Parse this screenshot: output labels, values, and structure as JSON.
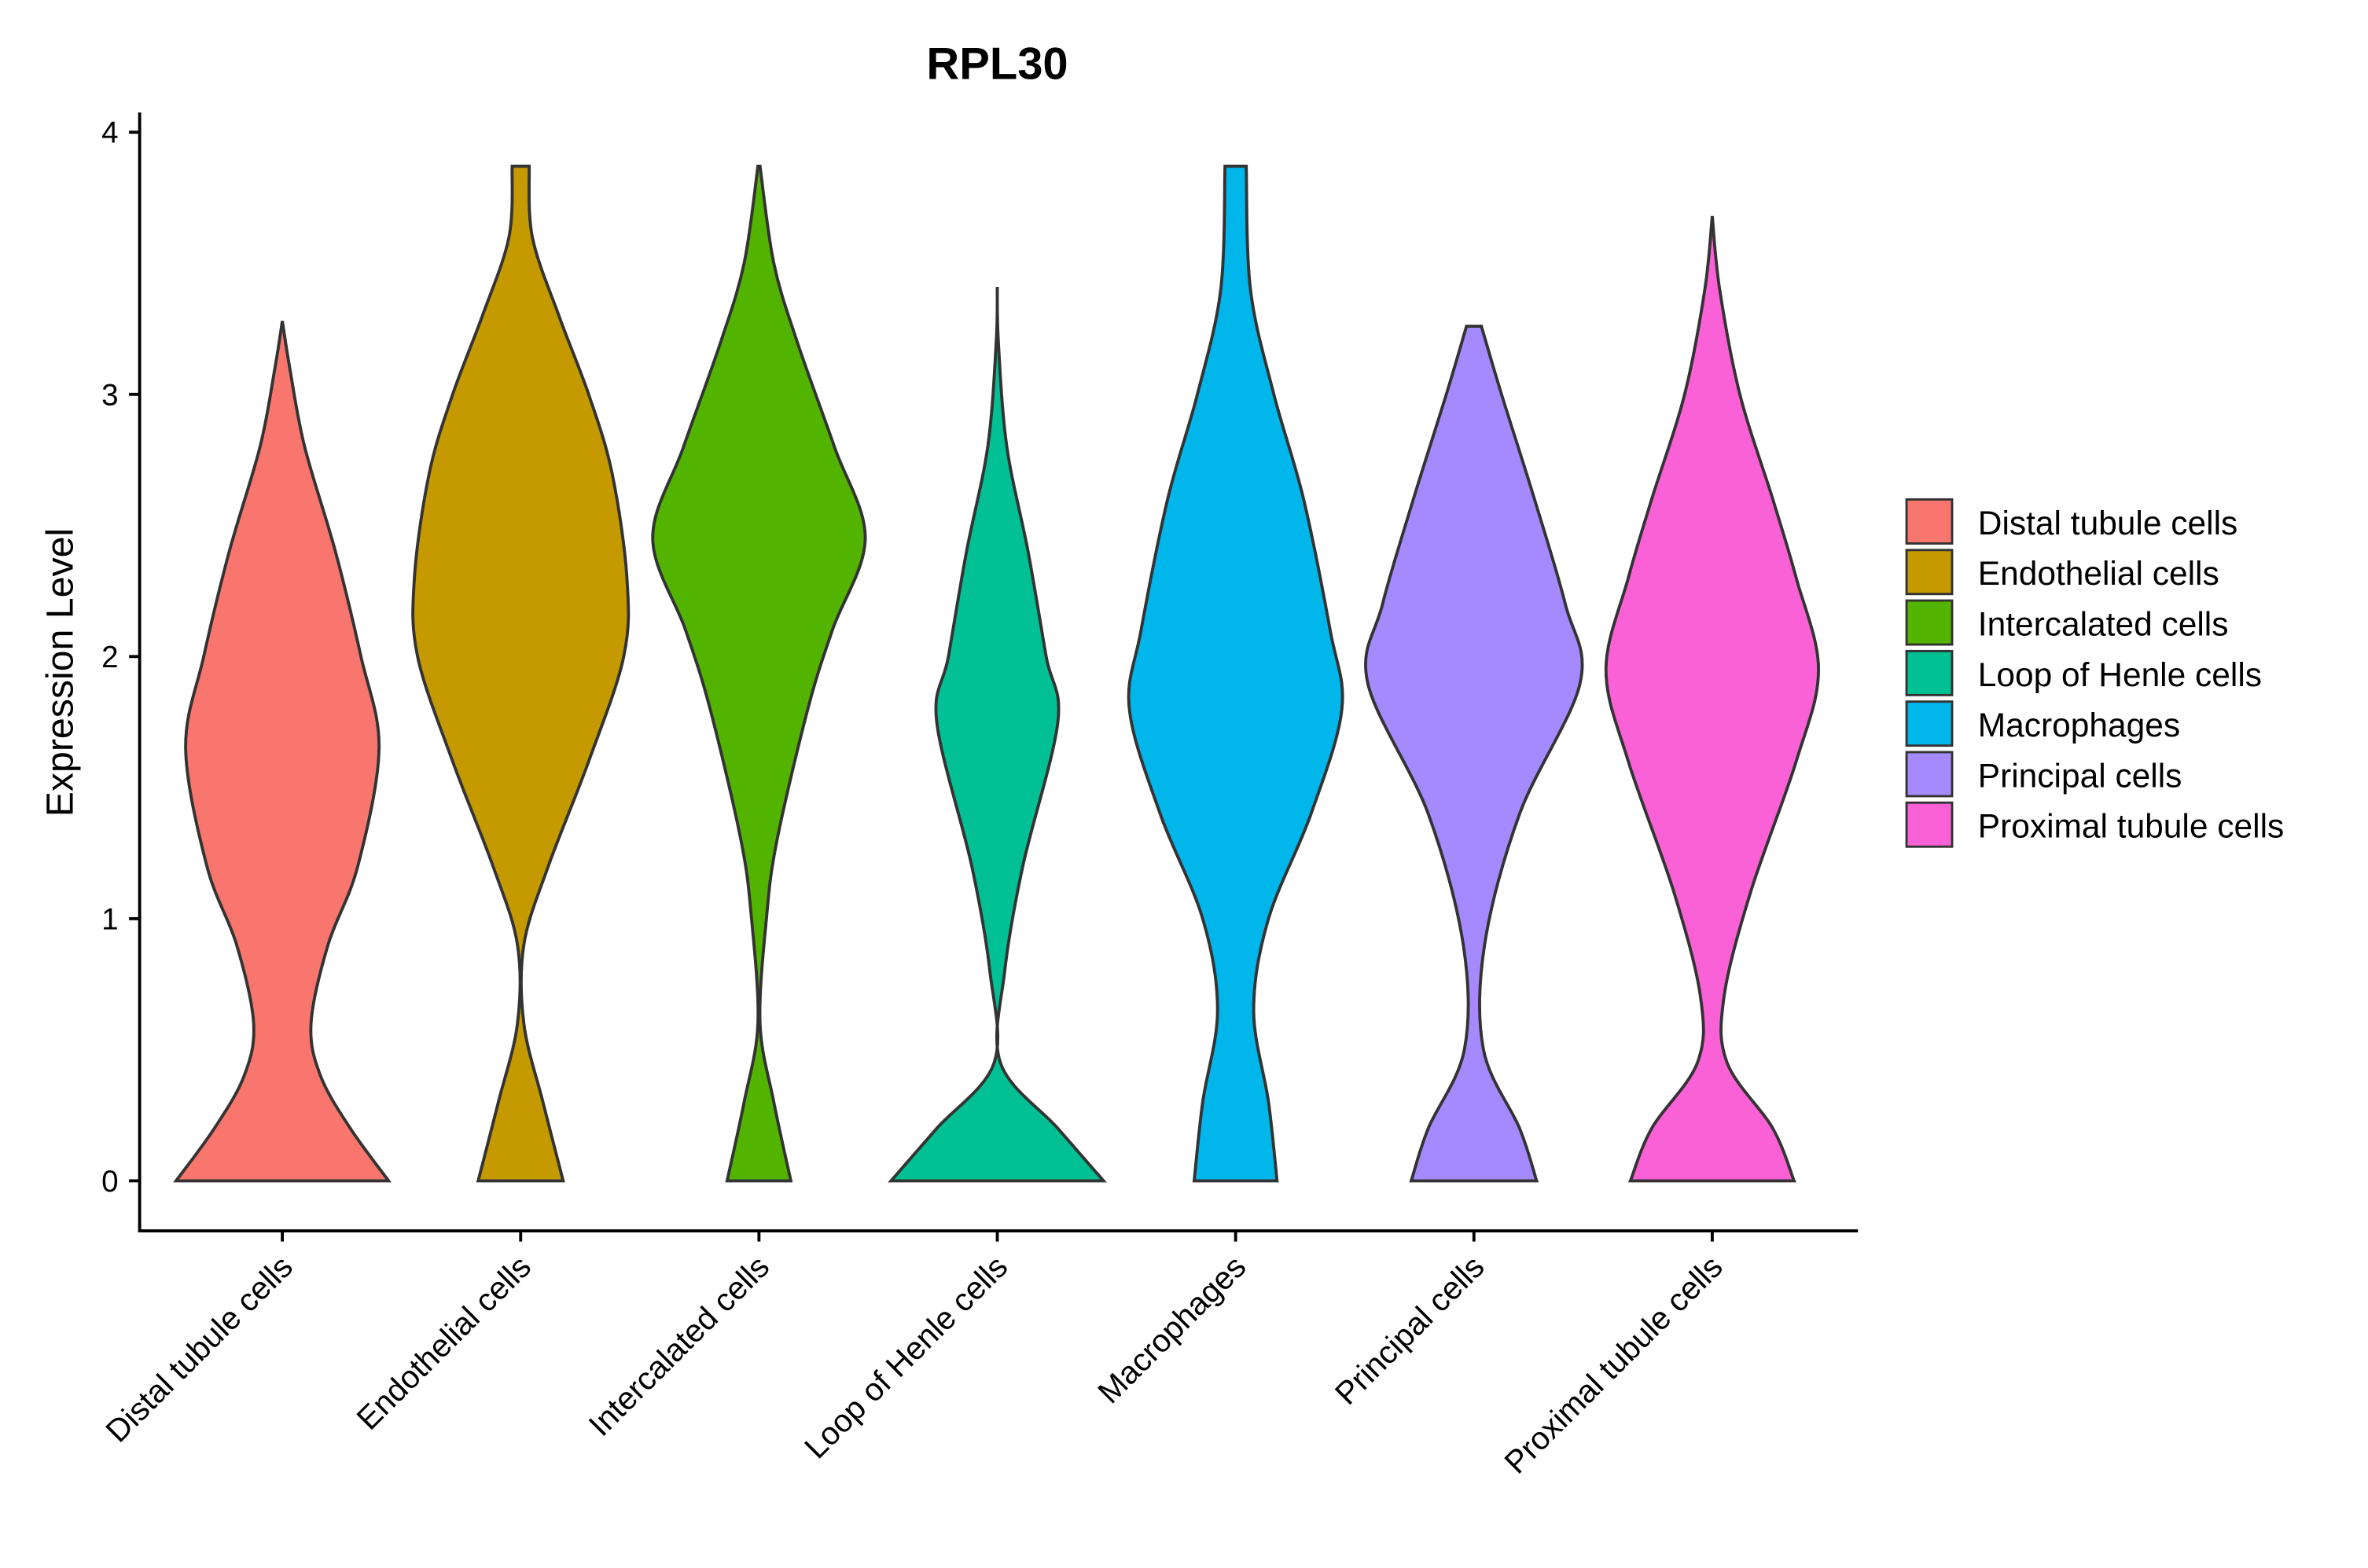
{
  "chart_data": {
    "type": "violin",
    "title": "RPL30",
    "xlabel": "",
    "ylabel": "Expression Level",
    "ylim": [
      -0.19,
      4.07
    ],
    "yticks": [
      "0",
      "1",
      "2",
      "3",
      "4"
    ],
    "grid": false,
    "legend_position": "right",
    "categories": [
      "Distal tubule cells",
      "Endothelial cells",
      "Intercalated cells",
      "Loop of Henle cells",
      "Macrophages",
      "Principal cells",
      "Proximal tubule cells"
    ],
    "colors": [
      "#F8766D",
      "#C49A00",
      "#53B400",
      "#00C094",
      "#00B6EB",
      "#A58AFF",
      "#FB61D7"
    ],
    "series": [
      {
        "name": "Distal tubule cells",
        "max": 3.28,
        "density": [
          [
            0,
            1.0
          ],
          [
            0.2,
            0.64
          ],
          [
            0.4,
            0.36
          ],
          [
            0.6,
            0.27
          ],
          [
            0.9,
            0.43
          ],
          [
            1.2,
            0.71
          ],
          [
            1.65,
            0.91
          ],
          [
            2.0,
            0.74
          ],
          [
            2.4,
            0.5
          ],
          [
            2.8,
            0.21
          ],
          [
            3.1,
            0.07
          ],
          [
            3.28,
            0.0
          ]
        ]
      },
      {
        "name": "Endothelial cells",
        "max": 3.87,
        "density": [
          [
            0,
            0.4
          ],
          [
            0.3,
            0.21
          ],
          [
            0.6,
            0.03
          ],
          [
            0.9,
            0.03
          ],
          [
            1.2,
            0.26
          ],
          [
            1.6,
            0.64
          ],
          [
            2.0,
            0.97
          ],
          [
            2.3,
            1.0
          ],
          [
            2.7,
            0.86
          ],
          [
            3.0,
            0.64
          ],
          [
            3.3,
            0.36
          ],
          [
            3.6,
            0.11
          ],
          [
            3.87,
            0.08
          ]
        ]
      },
      {
        "name": "Intercalated cells",
        "max": 3.87,
        "density": [
          [
            0,
            0.3
          ],
          [
            0.3,
            0.14
          ],
          [
            0.6,
            0.01
          ],
          [
            1.0,
            0.07
          ],
          [
            1.3,
            0.17
          ],
          [
            1.8,
            0.46
          ],
          [
            2.1,
            0.69
          ],
          [
            2.45,
            1.0
          ],
          [
            2.8,
            0.71
          ],
          [
            3.2,
            0.36
          ],
          [
            3.5,
            0.14
          ],
          [
            3.87,
            0.01
          ]
        ]
      },
      {
        "name": "Loop of Henle cells",
        "max": 3.41,
        "density": [
          [
            0,
            1.0
          ],
          [
            0.2,
            0.57
          ],
          [
            0.45,
            0.03
          ],
          [
            0.8,
            0.07
          ],
          [
            1.2,
            0.24
          ],
          [
            1.75,
            0.57
          ],
          [
            2.0,
            0.46
          ],
          [
            2.4,
            0.29
          ],
          [
            2.8,
            0.09
          ],
          [
            3.2,
            0.01
          ],
          [
            3.41,
            0.0
          ]
        ]
      },
      {
        "name": "Macrophages",
        "max": 3.87,
        "density": [
          [
            0,
            0.39
          ],
          [
            0.3,
            0.31
          ],
          [
            0.65,
            0.17
          ],
          [
            1.0,
            0.31
          ],
          [
            1.4,
            0.71
          ],
          [
            1.8,
            1.0
          ],
          [
            2.1,
            0.89
          ],
          [
            2.6,
            0.64
          ],
          [
            3.0,
            0.36
          ],
          [
            3.4,
            0.14
          ],
          [
            3.87,
            0.1
          ]
        ]
      },
      {
        "name": "Principal cells",
        "max": 3.26,
        "density": [
          [
            0,
            0.59
          ],
          [
            0.2,
            0.43
          ],
          [
            0.5,
            0.09
          ],
          [
            0.9,
            0.1
          ],
          [
            1.4,
            0.43
          ],
          [
            1.9,
            1.0
          ],
          [
            2.2,
            0.86
          ],
          [
            2.6,
            0.57
          ],
          [
            3.0,
            0.26
          ],
          [
            3.26,
            0.07
          ]
        ]
      },
      {
        "name": "Proximal tubule cells",
        "max": 3.68,
        "density": [
          [
            0,
            0.77
          ],
          [
            0.2,
            0.57
          ],
          [
            0.45,
            0.14
          ],
          [
            0.7,
            0.11
          ],
          [
            1.1,
            0.36
          ],
          [
            1.6,
            0.79
          ],
          [
            1.95,
            1.0
          ],
          [
            2.3,
            0.79
          ],
          [
            2.6,
            0.57
          ],
          [
            3.0,
            0.26
          ],
          [
            3.4,
            0.07
          ],
          [
            3.68,
            0.0
          ]
        ]
      }
    ]
  }
}
